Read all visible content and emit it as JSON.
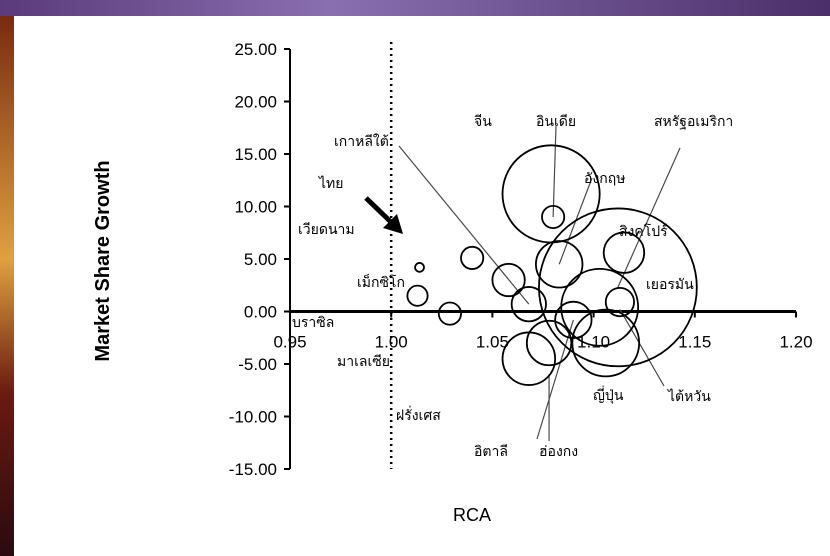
{
  "chart_data": {
    "type": "scatter",
    "xlabel": "RCA",
    "ylabel": "Market Share Growth",
    "xlim": [
      0.95,
      1.2
    ],
    "ylim": [
      -15,
      25
    ],
    "x_ticks": [
      "0.95",
      "1.00",
      "1.05",
      "1.10",
      "1.15",
      "1.20"
    ],
    "y_ticks": [
      "25.00",
      "20.00",
      "15.00",
      "10.00",
      "5.00",
      "0.00",
      "-5.00",
      "-10.00",
      "-15.00"
    ],
    "reference_line_x": 1.0,
    "bubbles": [
      {
        "label": "จีน",
        "x": 1.079,
        "y": 11.2,
        "r": 0.024
      },
      {
        "label": "อินเดีย",
        "x": 1.08,
        "y": 9.0,
        "r": 0.0055
      },
      {
        "label": "สหรัฐอเมริกา",
        "x": 1.112,
        "y": 2.3,
        "r": 0.039
      },
      {
        "label": "อังกฤษ",
        "x": 1.083,
        "y": 4.5,
        "r": 0.0115
      },
      {
        "label": "สิงคโปร์",
        "x": 1.115,
        "y": 5.6,
        "r": 0.01
      },
      {
        "label": "เยอรมัน",
        "x": 1.103,
        "y": 0.4,
        "r": 0.019
      },
      {
        "label": "ไต้หวัน",
        "x": 1.113,
        "y": 0.9,
        "r": 0.007
      },
      {
        "label": "ญี่ปุ่น",
        "x": 1.106,
        "y": -3.0,
        "r": 0.0165
      },
      {
        "label": "ฮ่องกง",
        "x": 1.09,
        "y": -0.8,
        "r": 0.009
      },
      {
        "label": "อิตาลี",
        "x": 1.078,
        "y": -3.0,
        "r": 0.011
      },
      {
        "label": "ฝรั่งเศส",
        "x": 1.068,
        "y": -4.5,
        "r": 0.013
      },
      {
        "label": "เกาหลีใต้",
        "x": 1.068,
        "y": 0.7,
        "r": 0.0085
      },
      {
        "label": "เม็กซิโก",
        "x": 1.058,
        "y": 3.0,
        "r": 0.008
      },
      {
        "label": "ไทย",
        "x": 1.04,
        "y": 5.1,
        "r": 0.0055
      },
      {
        "label": "เวียดนาม",
        "x": 1.014,
        "y": 4.2,
        "r": 0.0022
      },
      {
        "label": "บราซิล",
        "x": 1.013,
        "y": 1.5,
        "r": 0.005
      },
      {
        "label": "มาเลเซีย",
        "x": 1.029,
        "y": -0.2,
        "r": 0.0055
      }
    ],
    "labels": [
      {
        "text": "จีน",
        "color": "#000000"
      },
      {
        "text": "อินเดีย",
        "color": "#000000"
      },
      {
        "text": "สหรัฐอเมริกา",
        "color": "#000000"
      },
      {
        "text": "เกาหลีใต้",
        "color": "#000000"
      },
      {
        "text": "อังกฤษ",
        "color": "#000000"
      },
      {
        "text": "ไทย",
        "color": "#d71f1f"
      },
      {
        "text": "เวียดนาม",
        "color": "#000000"
      },
      {
        "text": "สิงคโปร์",
        "color": "#000000"
      },
      {
        "text": "เม็กซิโก",
        "color": "#000000"
      },
      {
        "text": "เยอรมัน",
        "color": "#000000"
      },
      {
        "text": "บราซิล",
        "color": "#000000"
      },
      {
        "text": "มาเลเซีย",
        "color": "#000000"
      },
      {
        "text": "ไต้หวัน",
        "color": "#000000"
      },
      {
        "text": "ญี่ปุ่น",
        "color": "#000000"
      },
      {
        "text": "ฝรั่งเศส",
        "color": "#000000"
      },
      {
        "text": "อิตาลี",
        "color": "#000000"
      },
      {
        "text": "ฮ่องกง",
        "color": "#000000"
      }
    ],
    "grid": false
  }
}
